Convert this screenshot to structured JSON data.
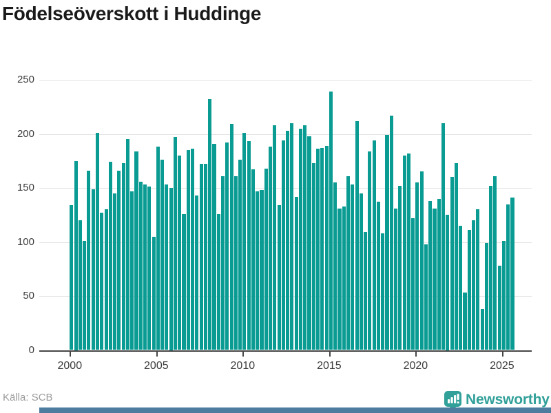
{
  "title": "Födelseöverskott i Huddinge",
  "footer": {
    "source": "Källa: SCB"
  },
  "brand": {
    "name": "Newsworthy"
  },
  "colors": {
    "bar": "#0a9b93",
    "grid": "#e3e3e3",
    "axis": "#454545",
    "title": "#1a1a1a",
    "tick_label": "#3c3c3c",
    "source_text": "#9b9b9b",
    "brand_teal": "#31a099",
    "footer_strip_blue": "#4d7c9e"
  },
  "chart_data": {
    "type": "bar",
    "title": "Födelseöverskott i Huddinge",
    "frequency": "quarterly",
    "start_period": "2000 Q1",
    "end_period": "2025 Q3",
    "x_tick_labels": [
      "2000",
      "2005",
      "2010",
      "2015",
      "2020",
      "2025"
    ],
    "y_ticks": [
      0,
      50,
      100,
      150,
      200,
      250
    ],
    "ylim": [
      0,
      255
    ],
    "grid": true,
    "legend": false,
    "series_name": "Födelseöverskott",
    "values": [
      134,
      175,
      120,
      101,
      166,
      149,
      201,
      127,
      130,
      174,
      145,
      166,
      173,
      195,
      147,
      184,
      156,
      153,
      151,
      105,
      188,
      176,
      153,
      150,
      197,
      180,
      126,
      185,
      186,
      143,
      172,
      172,
      232,
      191,
      126,
      161,
      192,
      209,
      161,
      176,
      201,
      193,
      167,
      147,
      148,
      168,
      188,
      208,
      134,
      194,
      203,
      210,
      142,
      205,
      208,
      198,
      173,
      186,
      187,
      189,
      239,
      155,
      131,
      133,
      161,
      153,
      212,
      145,
      109,
      184,
      194,
      137,
      108,
      199,
      217,
      131,
      152,
      180,
      182,
      122,
      155,
      165,
      98,
      138,
      131,
      140,
      210,
      125,
      160,
      173,
      115,
      53,
      111,
      120,
      130,
      38,
      99,
      152,
      161,
      78,
      101,
      135,
      141
    ]
  }
}
